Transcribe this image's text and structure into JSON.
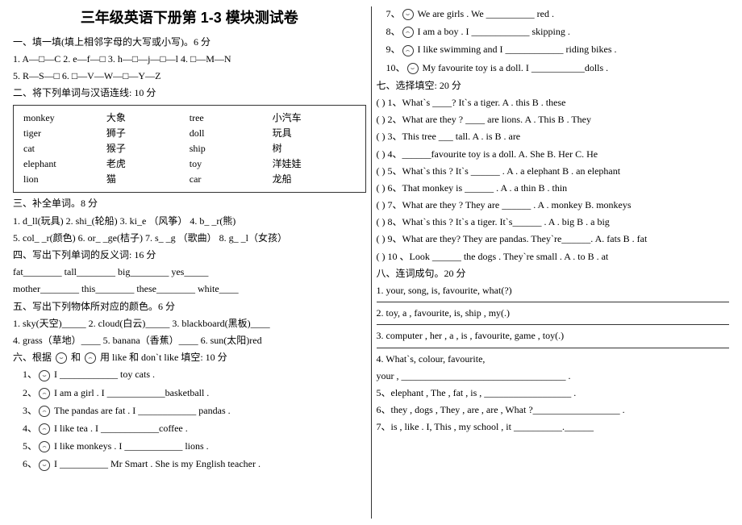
{
  "title": "三年级英语下册第 1-3 模块测试卷",
  "s1": {
    "head": "一、填一填(填上相邻字母的大写或小写)。6 分",
    "line1": "1. A—□—C        2. e—f—□        3. h—□—j—□—l        4. □—M—N",
    "line2": "5. R—S—□        6. □—V—W—□—Y—Z"
  },
  "s2": {
    "head": "二、将下列单词与汉语连线: 10 分",
    "rows": [
      [
        "monkey",
        "大象",
        "tree",
        "小汽车"
      ],
      [
        "tiger",
        "狮子",
        "doll",
        "玩具"
      ],
      [
        "cat",
        "猴子",
        "ship",
        "树"
      ],
      [
        "elephant",
        "老虎",
        "toy",
        "洋娃娃"
      ],
      [
        "lion",
        "猫",
        "car",
        "龙船"
      ]
    ]
  },
  "s3": {
    "head": "三、补全单词。8 分",
    "l1": "1. d_ll(玩具)   2. shi_(轮船)   3. ki_e （风筝）  4. b_ _r(熊)",
    "l2": "5. col_ _r(颜色)  6. or_ _ge(桔子)  7. s_ _g （歌曲） 8. g_ _l（女孩）"
  },
  "s4": {
    "head": "四、写出下列单词的反义词: 16 分",
    "l1": "fat________        tall________        big________        yes_____",
    "l2": "mother________     this________        these________      white____"
  },
  "s5": {
    "head": "五、写出下列物体所对应的颜色。6 分",
    "l1": "1. sky(天空)_____     2. cloud(白云)_____     3. blackboard(黑板)____",
    "l2": "4. grass（草地）____   5. banana（香蕉）____   6. sun(太阳)red"
  },
  "s6": {
    "head": "六、根据 ",
    "head2": " 和 ",
    "head3": " 用 like 和 don`t like 填空: 10 分",
    "items": [
      "I ____________ toy cats .",
      "I am a girl . I ____________basketball .",
      "The pandas are fat . I ____________ pandas .",
      "I like tea . I ____________coffee .",
      "I like monkeys . I ____________ lions .",
      "I __________ Mr Smart . She is my English teacher ."
    ],
    "r7": "We are girls . We __________ red .",
    "r8": "I am a boy . I ____________ skipping .",
    "r9": "I like swimming and I ____________ riding bikes .",
    "r10": "My favourite toy is a doll. I ___________dolls ."
  },
  "s7": {
    "head": "七、选择填空: 20 分",
    "qs": [
      "(  ) 1、What`s ____? It`s a tiger. A .  this       B . these",
      "(  ) 2、What are they ?  ____ are lions. A .   This       B . They",
      "(  ) 3、This tree ___ tall. A . is            B . are",
      "(  ) 4、______favourite  toy  is  a  doll.   A. She    B. Her   C. He",
      "(  ) 5、What`s this ? It`s ______ .  A . a elephant      B . an elephant",
      "(  ) 6、That monkey is ______ .   A . a thin        B . thin",
      "(  ) 7、What are they ? They are ______ .   A . monkey       B. monkeys",
      "(  ) 8、What`s this ? It`s a tiger. It`s______ .     A . big     B . a big",
      "(  ) 9、What are they? They are pandas. They`re______.  A. fats   B . fat",
      "(  ) 10 、Look  ______  the  dogs  .  They`re  small  .  A  . to    B . at"
    ]
  },
  "s8": {
    "head": "八、连词成句。20 分",
    "qs": [
      "1. your,  song,  is,  favourite,  what(?)",
      "2. toy,  a ,  favourite,  is,  ship , my(.)",
      "3.  computer , her , a , is , favourite, game , toy(.)",
      "4. What`s, colour, favourite,",
      "your , __________________________________ .",
      "5、elephant , The , fat , is , __________________ .",
      "6、they , dogs , They , are , are , What ?__________________ .",
      "7、is , like . I, This , my school , it __________.______"
    ]
  },
  "nums": [
    "1、",
    "2、",
    "3、",
    "4、",
    "5、",
    "6、",
    "7、",
    "8、",
    "9、",
    "10、"
  ]
}
